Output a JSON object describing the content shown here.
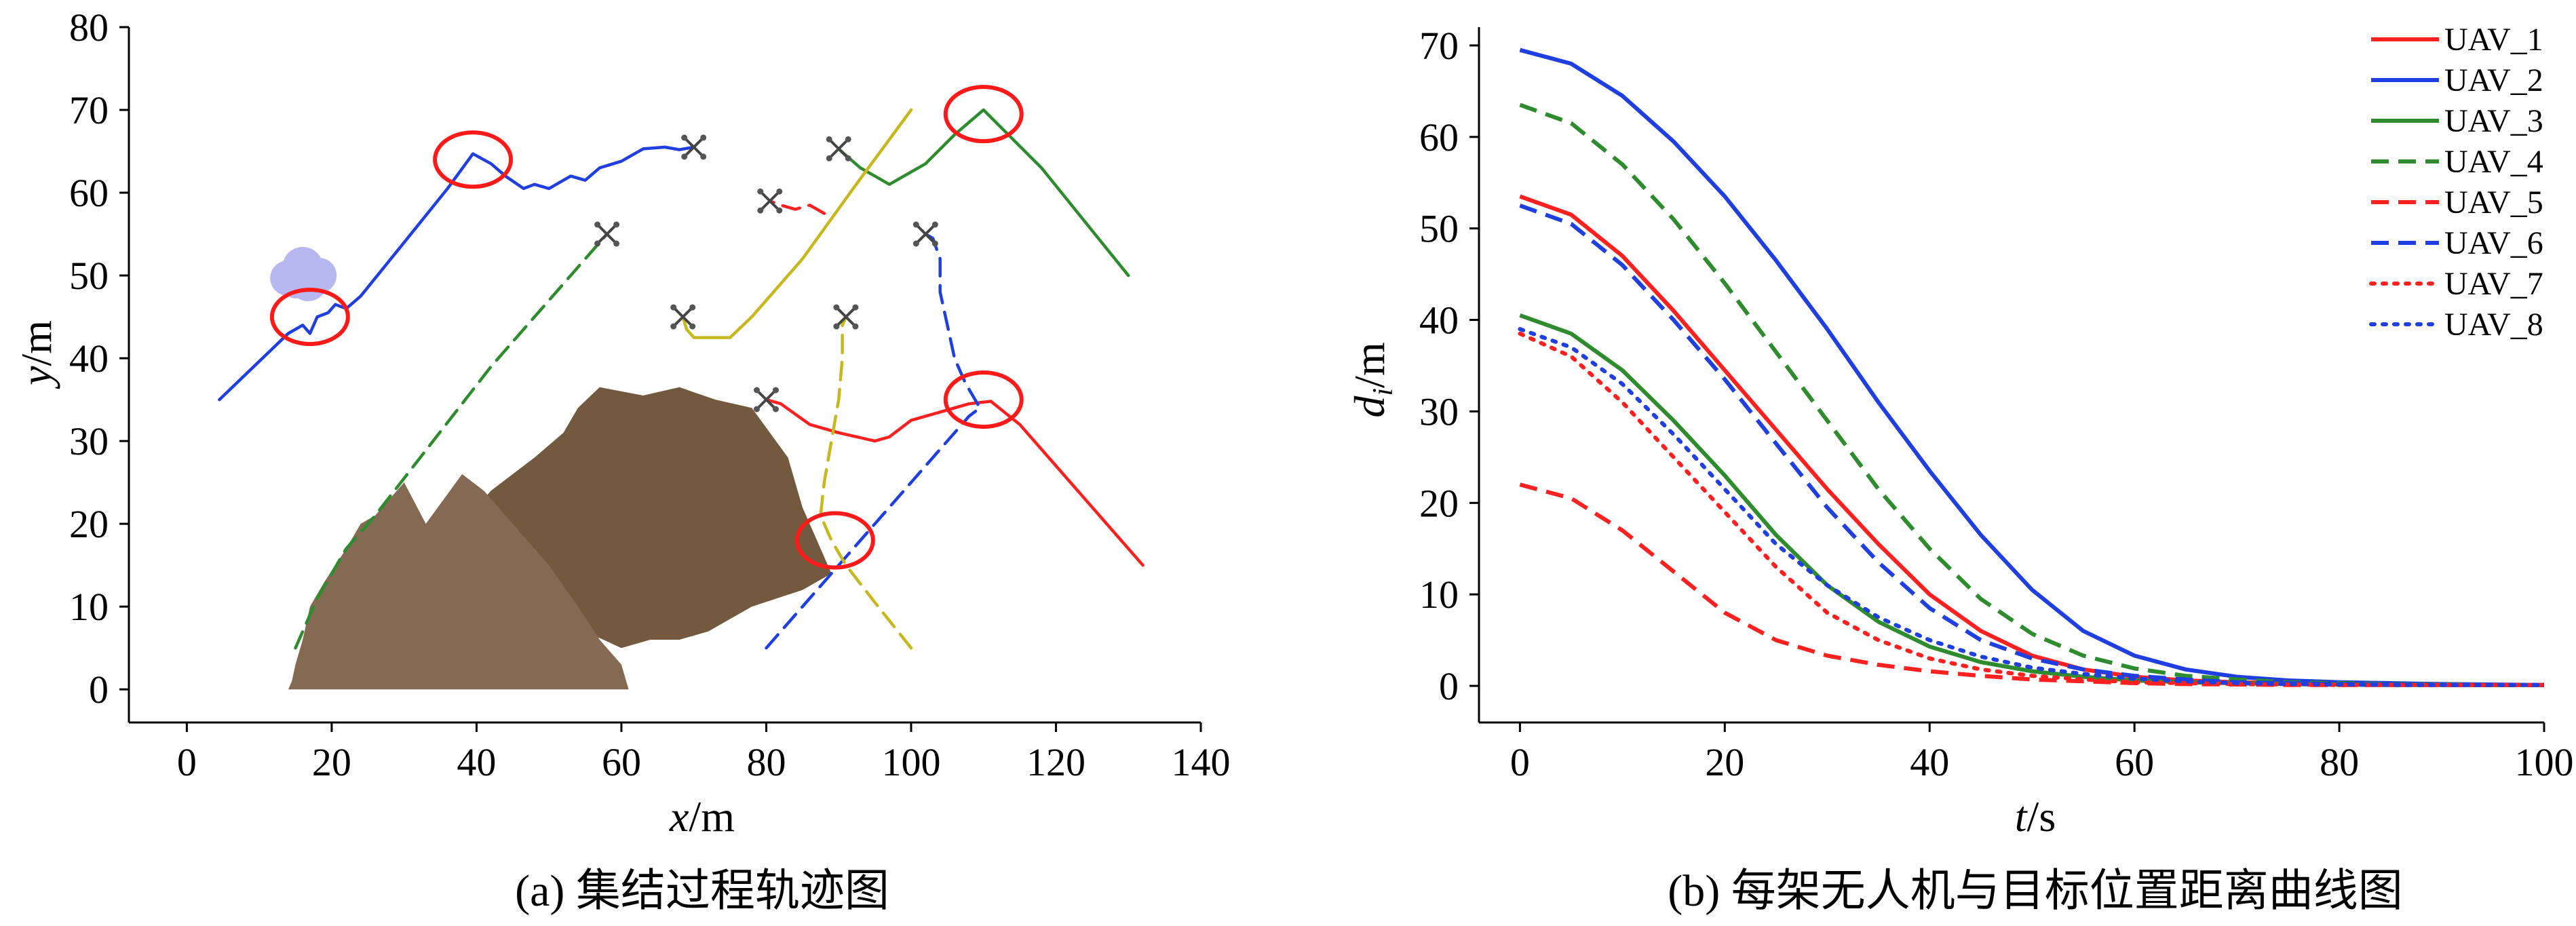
{
  "chart_data": [
    {
      "type": "line",
      "xlabel": {
        "var": "x",
        "unit": "/m"
      },
      "ylabel": {
        "var": "y",
        "unit": "/m"
      },
      "xlim": [
        -8,
        140
      ],
      "ylim": [
        -4,
        80
      ],
      "xticks": [
        0,
        20,
        40,
        60,
        80,
        100,
        120,
        140
      ],
      "yticks": [
        0,
        10,
        20,
        30,
        40,
        50,
        60,
        70,
        80
      ],
      "caption": "(a) 集结过程轨迹图",
      "grid": false,
      "series": [
        {
          "color": "#1f3fe0",
          "dash": "solid",
          "points": [
            [
              4.5,
              35
            ],
            [
              14,
              43
            ],
            [
              16,
              44
            ],
            [
              17,
              43
            ],
            [
              18,
              45
            ],
            [
              19.5,
              45.5
            ],
            [
              20.5,
              46.5
            ],
            [
              22,
              46
            ],
            [
              24,
              47.5
            ],
            [
              30,
              54
            ],
            [
              36,
              60.5
            ],
            [
              39.5,
              64.7
            ],
            [
              42,
              63.5
            ],
            [
              44,
              62
            ],
            [
              46.5,
              60.5
            ],
            [
              48,
              61
            ],
            [
              50,
              60.5
            ],
            [
              53,
              62
            ],
            [
              55,
              61.5
            ],
            [
              57,
              63
            ],
            [
              60,
              63.8
            ],
            [
              63,
              65.3
            ],
            [
              66,
              65.5
            ],
            [
              68,
              65.2
            ],
            [
              70,
              65.5
            ]
          ]
        },
        {
          "color": "#2e8b2e",
          "dash": "solid",
          "points": [
            [
              130,
              50
            ],
            [
              118,
              63
            ],
            [
              110,
              70
            ],
            [
              106,
              67
            ],
            [
              102,
              63.5
            ],
            [
              99,
              62
            ],
            [
              97,
              61
            ],
            [
              95,
              62
            ],
            [
              93,
              63
            ],
            [
              91,
              64.5
            ],
            [
              90,
              65.3
            ]
          ]
        },
        {
          "color": "#ff2020",
          "dash": "solid",
          "points": [
            [
              132,
              15
            ],
            [
              122,
              25
            ],
            [
              115,
              32
            ],
            [
              111,
              34.8
            ],
            [
              108,
              34.5
            ],
            [
              106,
              34
            ],
            [
              104,
              33.5
            ],
            [
              100,
              32.5
            ],
            [
              97,
              30.5
            ],
            [
              95,
              30
            ],
            [
              90,
              31
            ],
            [
              86,
              32
            ],
            [
              82,
              34.5
            ],
            [
              80,
              35
            ]
          ]
        },
        {
          "color": "#c8b820",
          "dash": "solid",
          "points": [
            [
              100,
              70
            ],
            [
              92,
              60.5
            ],
            [
              85,
              52
            ],
            [
              78,
              45
            ],
            [
              75,
              42.5
            ],
            [
              72,
              42.5
            ],
            [
              70,
              42.5
            ],
            [
              69,
              43.5
            ],
            [
              68.5,
              45
            ]
          ]
        },
        {
          "color": "#2e8b2e",
          "dash": "dashed",
          "points": [
            [
              15,
              5
            ],
            [
              18,
              11
            ],
            [
              22,
              17
            ],
            [
              26,
              21
            ],
            [
              30,
              25.5
            ],
            [
              34,
              30
            ],
            [
              38,
              34.5
            ],
            [
              42,
              39
            ],
            [
              46,
              43
            ],
            [
              50,
              47
            ],
            [
              54,
              51
            ],
            [
              57,
              54
            ],
            [
              58,
              55
            ]
          ]
        },
        {
          "color": "#ff2020",
          "dash": "dashed",
          "points": [
            [
              88,
              57.5
            ],
            [
              86,
              58.5
            ],
            [
              84,
              58
            ],
            [
              82,
              58.5
            ],
            [
              80.5,
              59
            ]
          ]
        },
        {
          "color": "#1f3fe0",
          "dash": "dashed",
          "points": [
            [
              80,
              5
            ],
            [
              90,
              15
            ],
            [
              100,
              25
            ],
            [
              108,
              33
            ],
            [
              109.5,
              34
            ],
            [
              108.5,
              35.5
            ],
            [
              107.5,
              37
            ],
            [
              106,
              40
            ],
            [
              105,
              44
            ],
            [
              104,
              48
            ],
            [
              104,
              52
            ],
            [
              103,
              54.5
            ],
            [
              102,
              55
            ]
          ]
        },
        {
          "color": "#c8b820",
          "dash": "dashed",
          "points": [
            [
              100,
              5
            ],
            [
              95,
              10.5
            ],
            [
              91,
              15
            ],
            [
              89,
              18
            ],
            [
              87.5,
              21
            ],
            [
              88,
              25
            ],
            [
              89,
              30
            ],
            [
              90,
              35
            ],
            [
              90.5,
              40
            ],
            [
              90.5,
              44
            ],
            [
              91,
              45
            ]
          ]
        }
      ],
      "markers": [
        {
          "label": "UAV_1 终点",
          "at": [
            80,
            35
          ]
        },
        {
          "label": "UAV_2 终点",
          "at": [
            70,
            65.5
          ]
        },
        {
          "label": "UAV_3 终点",
          "at": [
            90,
            65.3
          ]
        },
        {
          "label": "UAV_4 终点",
          "at": [
            58,
            55
          ]
        },
        {
          "label": "UAV_5 终点",
          "at": [
            80.5,
            59
          ]
        },
        {
          "label": "UAV_6 终点",
          "at": [
            102,
            55
          ]
        },
        {
          "label": "UAV_7 终点",
          "at": [
            68.5,
            45
          ]
        },
        {
          "label": "UAV_8 终点",
          "at": [
            91,
            45
          ]
        }
      ],
      "circles": [
        [
          17,
          45
        ],
        [
          39.5,
          64
        ],
        [
          110,
          69.5
        ],
        [
          110,
          35
        ],
        [
          89.5,
          18
        ]
      ],
      "obstacles": [
        {
          "name": "cloud",
          "color": "#b8b8f0",
          "at": [
            16,
            50.5
          ]
        },
        {
          "name": "mountain-back",
          "color": "#735a3f",
          "outline": [
            [
              38,
              20
            ],
            [
              42,
              24
            ],
            [
              48,
              28
            ],
            [
              52,
              31
            ],
            [
              54,
              34
            ],
            [
              57,
              36.5
            ],
            [
              63,
              35.5
            ],
            [
              68,
              36.5
            ],
            [
              73,
              35
            ],
            [
              78,
              34
            ],
            [
              83,
              28
            ],
            [
              85,
              22
            ],
            [
              89,
              14
            ],
            [
              85,
              12
            ],
            [
              78,
              10
            ],
            [
              72,
              7
            ],
            [
              68,
              6
            ],
            [
              64,
              6
            ],
            [
              60,
              5
            ],
            [
              55,
              7
            ],
            [
              50,
              10
            ],
            [
              45,
              13
            ],
            [
              40,
              16
            ]
          ]
        },
        {
          "name": "mountain-front",
          "color": "#846a52",
          "outline": [
            [
              14,
              0
            ],
            [
              61,
              0
            ],
            [
              60,
              3
            ],
            [
              57,
              6
            ],
            [
              54,
              10
            ],
            [
              50,
              15
            ],
            [
              45,
              20
            ],
            [
              41,
              24
            ],
            [
              38,
              26
            ],
            [
              33,
              20
            ],
            [
              30,
              25
            ],
            [
              28,
              23
            ],
            [
              26,
              21
            ],
            [
              24,
              20
            ],
            [
              22,
              17
            ],
            [
              19,
              13
            ],
            [
              17,
              10
            ],
            [
              16,
              6
            ],
            [
              15,
              3
            ],
            [
              14.5,
              1
            ]
          ]
        }
      ]
    },
    {
      "type": "line",
      "xlabel": {
        "var": "t",
        "unit": "/s"
      },
      "ylabel": {
        "var": "d",
        "sub": "i",
        "unit": "/m"
      },
      "xlim": [
        -4,
        100
      ],
      "ylim": [
        -4,
        72
      ],
      "xticks": [
        0,
        20,
        40,
        60,
        80,
        100
      ],
      "yticks": [
        0,
        10,
        20,
        30,
        40,
        50,
        60,
        70
      ],
      "caption": "(b) 每架无人机与目标位置距离曲线图",
      "grid": false,
      "legend_position": "top-right",
      "x": [
        0,
        5,
        10,
        15,
        20,
        25,
        30,
        35,
        40,
        45,
        50,
        55,
        60,
        65,
        70,
        75,
        80,
        85,
        90,
        95,
        100
      ],
      "series": [
        {
          "name": "UAV_1",
          "color": "#ff2020",
          "dash": "solid",
          "values": [
            53.5,
            51.5,
            47,
            41,
            34.5,
            28,
            21.5,
            15.5,
            10,
            6,
            3.3,
            1.8,
            1,
            0.6,
            0.4,
            0.3,
            0.2,
            0.15,
            0.1,
            0.1,
            0.1
          ]
        },
        {
          "name": "UAV_2",
          "color": "#1f3fe0",
          "dash": "solid",
          "values": [
            69.5,
            68,
            64.5,
            59.5,
            53.5,
            46.5,
            39,
            31,
            23.5,
            16.5,
            10.5,
            6,
            3.3,
            1.8,
            1,
            0.6,
            0.4,
            0.3,
            0.2,
            0.15,
            0.1
          ]
        },
        {
          "name": "UAV_3",
          "color": "#2e8b2e",
          "dash": "solid",
          "values": [
            40.5,
            38.5,
            34.5,
            29,
            23,
            16.5,
            11,
            7,
            4.3,
            2.6,
            1.6,
            1,
            0.6,
            0.4,
            0.3,
            0.2,
            0.15,
            0.1,
            0.1,
            0.1,
            0.1
          ]
        },
        {
          "name": "UAV_4",
          "color": "#2e8b2e",
          "dash": "dashed",
          "values": [
            63.5,
            61.5,
            57,
            51,
            44,
            36.5,
            29,
            21.5,
            15,
            9.5,
            5.7,
            3.3,
            1.9,
            1.1,
            0.7,
            0.4,
            0.3,
            0.2,
            0.15,
            0.1,
            0.1
          ]
        },
        {
          "name": "UAV_5",
          "color": "#ff2020",
          "dash": "dashed",
          "values": [
            22,
            20.5,
            17,
            12.5,
            8,
            5,
            3.3,
            2.3,
            1.6,
            1.1,
            0.7,
            0.5,
            0.3,
            0.2,
            0.15,
            0.1,
            0.1,
            0.1,
            0.1,
            0.1,
            0.1
          ]
        },
        {
          "name": "UAV_6",
          "color": "#1f3fe0",
          "dash": "dashed",
          "values": [
            52.5,
            50.5,
            46,
            40,
            33.5,
            26.5,
            19.5,
            13.5,
            8.5,
            5,
            3,
            1.8,
            1.1,
            0.7,
            0.4,
            0.3,
            0.2,
            0.15,
            0.1,
            0.1,
            0.1
          ]
        },
        {
          "name": "UAV_7",
          "color": "#ff2020",
          "dash": "dotted",
          "values": [
            38.5,
            36,
            31,
            25,
            19,
            13,
            8,
            5,
            3,
            1.8,
            1.1,
            0.7,
            0.4,
            0.3,
            0.2,
            0.15,
            0.1,
            0.1,
            0.1,
            0.1,
            0.1
          ]
        },
        {
          "name": "UAV_8",
          "color": "#1f3fe0",
          "dash": "dotted",
          "values": [
            39,
            37,
            33,
            27.5,
            21.5,
            15.5,
            11,
            7.5,
            5,
            3.2,
            2,
            1.3,
            0.8,
            0.5,
            0.3,
            0.2,
            0.15,
            0.1,
            0.1,
            0.1,
            0.1
          ]
        }
      ]
    }
  ]
}
